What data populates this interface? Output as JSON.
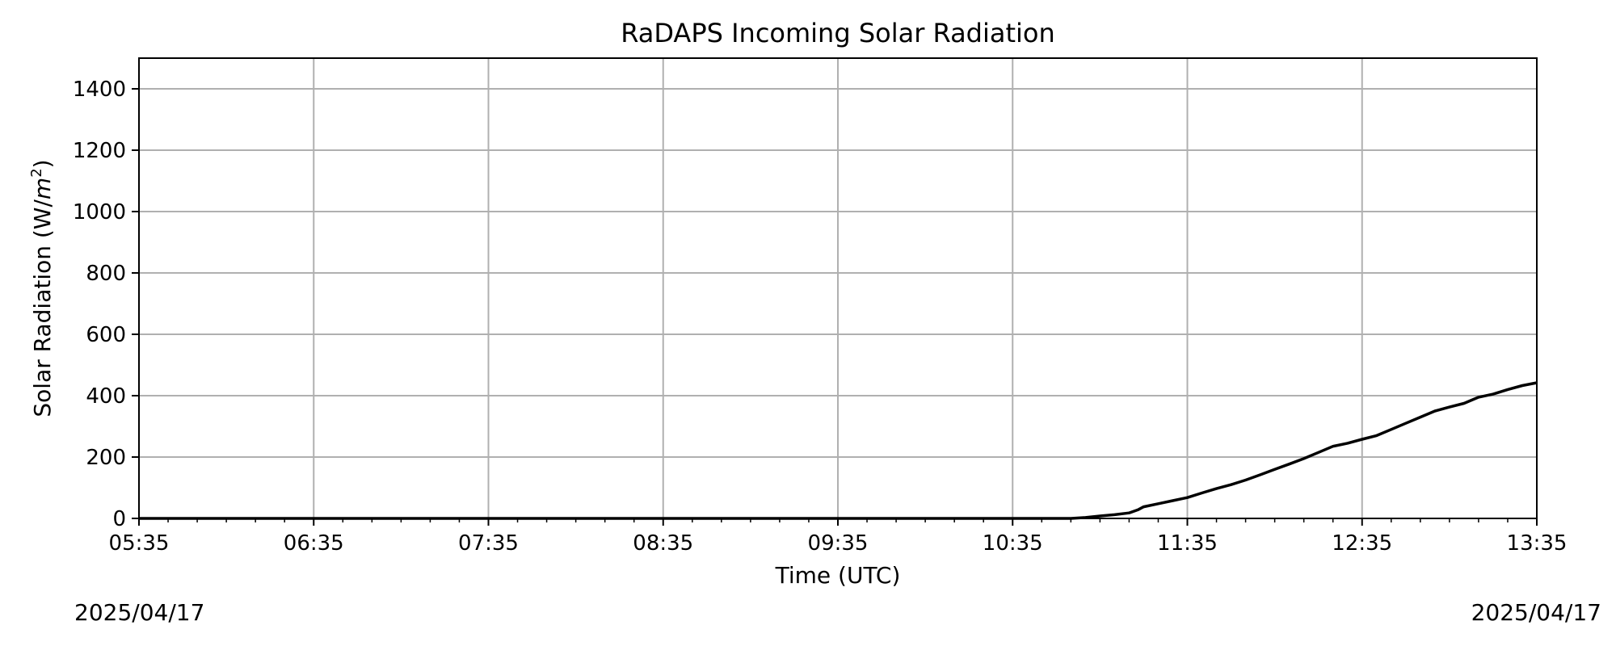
{
  "chart_data": {
    "type": "line",
    "title": "RaDAPS Incoming Solar Radiation",
    "xlabel": "Time (UTC)",
    "ylabel_prefix": "Solar Radiation (W/",
    "ylabel_unit_base": "m",
    "ylabel_unit_exp": "2",
    "ylabel_suffix": ")",
    "date_start": "2025/04/17",
    "date_end": "2025/04/17",
    "x_tick_labels": [
      "05:35",
      "06:35",
      "07:35",
      "08:35",
      "09:35",
      "10:35",
      "11:35",
      "12:35",
      "13:35"
    ],
    "xlim": [
      "05:35",
      "13:35"
    ],
    "ylim": [
      0,
      1500
    ],
    "y_ticks": [
      0,
      200,
      400,
      600,
      800,
      1000,
      1200,
      1400
    ],
    "grid": true,
    "series": [
      {
        "color": "#000000",
        "x": [
          "05:35",
          "10:35",
          "10:55",
          "11:00",
          "11:05",
          "11:10",
          "11:15",
          "11:18",
          "11:20",
          "11:25",
          "11:30",
          "11:35",
          "11:40",
          "11:45",
          "11:50",
          "11:55",
          "12:00",
          "12:05",
          "12:10",
          "12:15",
          "12:20",
          "12:25",
          "12:30",
          "12:35",
          "12:40",
          "12:45",
          "12:50",
          "12:55",
          "13:00",
          "13:05",
          "13:10",
          "13:15",
          "13:20",
          "13:25",
          "13:30",
          "13:35"
        ],
        "y": [
          0,
          0,
          0,
          3,
          8,
          12,
          18,
          28,
          38,
          48,
          58,
          68,
          83,
          97,
          110,
          125,
          142,
          160,
          177,
          195,
          215,
          235,
          245,
          258,
          270,
          290,
          310,
          330,
          350,
          363,
          375,
          395,
          405,
          420,
          433,
          442
        ]
      }
    ]
  }
}
